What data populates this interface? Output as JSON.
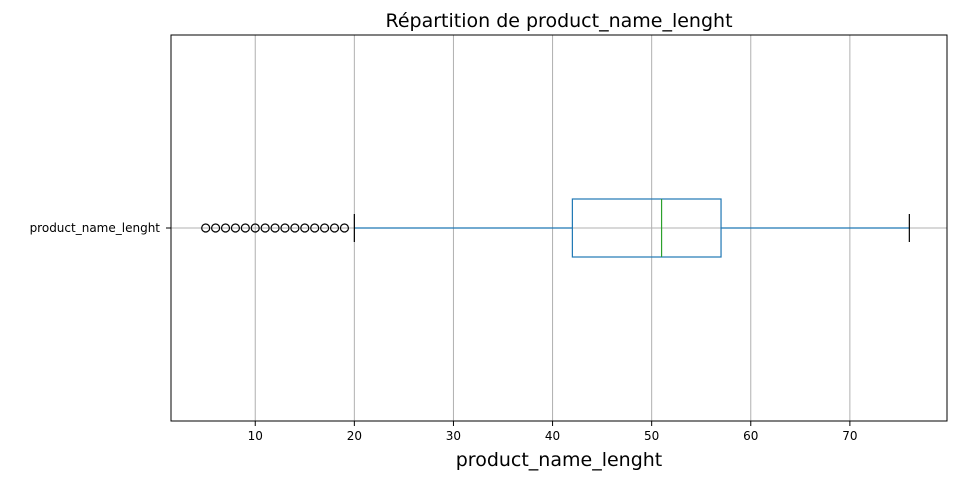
{
  "chart_data": {
    "type": "boxplot",
    "orientation": "horizontal",
    "title": "Répartition de product_name_lenght",
    "xlabel": "product_name_lenght",
    "ylabel": "",
    "category": "product_name_lenght",
    "xlim": [
      1.5,
      79.8
    ],
    "xticks": [
      10,
      20,
      30,
      40,
      50,
      60,
      70
    ],
    "grid": true,
    "stats": {
      "whisker_low": 20,
      "q1": 42,
      "median": 51,
      "q3": 57,
      "whisker_high": 76
    },
    "outliers": [
      5,
      6,
      7,
      8,
      9,
      10,
      11,
      12,
      13,
      14,
      15,
      16,
      17,
      18,
      19
    ],
    "colors": {
      "box": "#1f77b4",
      "median": "#2ca02c",
      "whisker": "#1f77b4",
      "cap": "#000000",
      "outlier_edge": "#000000",
      "grid": "#b0b0b0"
    }
  }
}
